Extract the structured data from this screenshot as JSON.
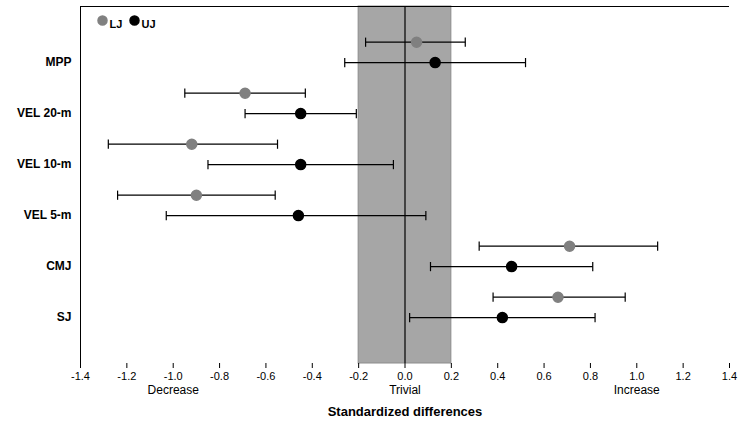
{
  "chart_data": {
    "type": "forest",
    "x_label": "Standardized differences",
    "categories": [
      "SJ",
      "CMJ",
      "VEL 5-m",
      "VEL 10-m",
      "VEL 20-m",
      "MPP"
    ],
    "series": [
      {
        "name": "LJ",
        "color": "#808080",
        "marker": "circle",
        "values": [
          0.66,
          0.71,
          -0.9,
          -0.92,
          -0.69,
          0.05
        ],
        "lower": [
          0.38,
          0.32,
          -1.24,
          -1.28,
          -0.95,
          -0.17
        ],
        "upper": [
          0.95,
          1.09,
          -0.56,
          -0.55,
          -0.43,
          0.26
        ]
      },
      {
        "name": "UJ",
        "color": "#000000",
        "marker": "circle",
        "values": [
          0.42,
          0.46,
          -0.46,
          -0.45,
          -0.45,
          0.13
        ],
        "lower": [
          0.02,
          0.11,
          -1.03,
          -0.85,
          -0.69,
          -0.26
        ],
        "upper": [
          0.82,
          0.81,
          0.09,
          -0.05,
          -0.21,
          0.52
        ]
      }
    ],
    "xlim": [
      -1.4,
      1.4
    ],
    "xticks": [
      -1.4,
      -1.2,
      {
        "value": -1.0,
        "label": "-1.0"
      },
      -0.8,
      -0.6,
      -0.4,
      -0.2,
      {
        "value": 0,
        "label": "0.0"
      },
      0.2,
      0.4,
      0.6,
      0.8,
      {
        "value": 1.0,
        "label": "1.0"
      },
      1.2,
      1.4
    ],
    "trivial_band": [
      -0.2,
      0.2
    ],
    "reference_line": 0,
    "annotations": [
      {
        "text": "Decrease",
        "x": -1.0
      },
      {
        "text": "Trivial",
        "x": 0
      },
      {
        "text": "Increase",
        "x": 1.0
      }
    ],
    "legend": "top-left",
    "grid": false
  }
}
